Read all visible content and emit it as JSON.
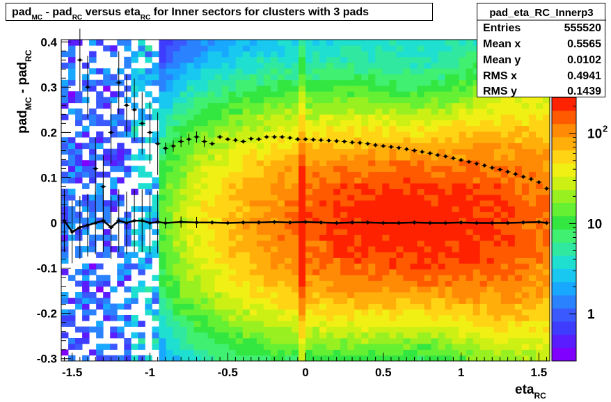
{
  "chart_data": {
    "type": "heatmap",
    "title": {
      "parts": [
        {
          "text": "pad",
          "style": "normal"
        },
        {
          "text": "MC",
          "style": "sub"
        },
        {
          "text": " - pad",
          "style": "normal"
        },
        {
          "text": "RC",
          "style": "sub"
        },
        {
          "text": " versus eta",
          "style": "normal"
        },
        {
          "text": "RC",
          "style": "sub"
        },
        {
          "text": " for Inner sectors for clusters with 3 pads",
          "style": "normal"
        }
      ]
    },
    "xlabel": {
      "main": "eta",
      "sub": "RC"
    },
    "ylabel": {
      "parts": [
        "pad",
        "MC",
        " - pad",
        "RC"
      ]
    },
    "xlim": [
      -1.57,
      1.57
    ],
    "ylim": [
      -0.305,
      0.405
    ],
    "xticks": [
      -1.5,
      -1,
      -0.5,
      0,
      0.5,
      1,
      1.5
    ],
    "xtick_labels": [
      "-1.5",
      "-1",
      "-0.5",
      "0",
      "0.5",
      "1",
      "1.5"
    ],
    "yticks": [
      -0.3,
      -0.2,
      -0.1,
      0,
      0.1,
      0.2,
      0.3,
      0.4
    ],
    "ytick_labels": [
      "-0.3",
      "-0.2",
      "-0.1",
      "0",
      "0.1",
      "0.2",
      "0.3",
      "0.4"
    ],
    "z_scale": "log",
    "zlim": [
      0.3,
      250
    ],
    "colorbar_ticks": [
      1,
      10,
      100
    ],
    "colorbar_labels": [
      "1",
      "10",
      "10"
    ],
    "colorbar_exponent": "2",
    "palette": [
      "#7f00ff",
      "#5a1dff",
      "#3e3dff",
      "#3a5aff",
      "#2a82ff",
      "#18a8ff",
      "#18c8f0",
      "#1fe0d0",
      "#30e8a0",
      "#40f070",
      "#33e640",
      "#66f033",
      "#99f020",
      "#ccf014",
      "#f0f014",
      "#ffd414",
      "#ffae0a",
      "#ff8a05",
      "#ff5a00",
      "#ff2200"
    ],
    "profile_mean": {
      "name": "mean profile",
      "x": [
        -1.55,
        -1.5,
        -1.45,
        -1.4,
        -1.35,
        -1.3,
        -1.25,
        -1.2,
        -1.15,
        -1.1,
        -1.05,
        -1.0,
        -0.95,
        -0.9,
        -0.8,
        -0.7,
        -0.6,
        -0.5,
        -0.4,
        -0.3,
        -0.2,
        -0.1,
        0.0,
        0.1,
        0.2,
        0.3,
        0.4,
        0.5,
        0.6,
        0.7,
        0.8,
        0.9,
        1.0,
        1.1,
        1.2,
        1.3,
        1.4,
        1.5,
        1.55
      ],
      "y": [
        0.005,
        -0.02,
        -0.01,
        -0.005,
        0.0,
        0.005,
        -0.01,
        0.005,
        0.0,
        0.005,
        0.005,
        0.0,
        0.002,
        0.0,
        0.002,
        0.001,
        0.001,
        0.0,
        0.001,
        0.001,
        0.002,
        0.001,
        0.002,
        0.001,
        0.0,
        0.001,
        0.001,
        0.0,
        0.0,
        0.001,
        0.0,
        0.0,
        0.001,
        0.0,
        0.0,
        0.0,
        0.001,
        0.002,
        0.0
      ]
    },
    "profile_rms": {
      "name": "rms profile",
      "x": [
        -1.45,
        -1.4,
        -1.35,
        -1.3,
        -1.25,
        -1.2,
        -1.15,
        -1.1,
        -1.05,
        -1.0,
        -0.95,
        -0.9,
        -0.85,
        -0.8,
        -0.75,
        -0.7,
        -0.65,
        -0.6,
        -0.55,
        -0.5,
        -0.45,
        -0.4,
        -0.35,
        -0.3,
        -0.25,
        -0.2,
        -0.15,
        -0.1,
        -0.05,
        0.0,
        0.05,
        0.1,
        0.15,
        0.2,
        0.25,
        0.3,
        0.35,
        0.4,
        0.45,
        0.5,
        0.55,
        0.6,
        0.65,
        0.7,
        0.75,
        0.8,
        0.85,
        0.9,
        0.95,
        1.0,
        1.05,
        1.1,
        1.15,
        1.2,
        1.25,
        1.3,
        1.35,
        1.4,
        1.45,
        1.5,
        1.55
      ],
      "y": [
        0.36,
        0.3,
        0.12,
        0.08,
        0.2,
        0.31,
        0.26,
        0.25,
        0.22,
        0.2,
        0.175,
        0.165,
        0.17,
        0.18,
        0.185,
        0.19,
        0.18,
        0.175,
        0.19,
        0.185,
        0.183,
        0.18,
        0.186,
        0.185,
        0.19,
        0.19,
        0.19,
        0.188,
        0.185,
        0.185,
        0.184,
        0.183,
        0.182,
        0.181,
        0.18,
        0.178,
        0.177,
        0.175,
        0.172,
        0.17,
        0.168,
        0.166,
        0.163,
        0.16,
        0.157,
        0.154,
        0.15,
        0.147,
        0.143,
        0.139,
        0.135,
        0.131,
        0.127,
        0.122,
        0.118,
        0.113,
        0.108,
        0.102,
        0.097,
        0.09,
        0.076
      ]
    }
  },
  "stats": {
    "name": "pad_eta_RC_Innerp3",
    "rows": [
      {
        "label": "Entries",
        "value": "555520"
      },
      {
        "label": "Mean x",
        "value": "0.5565"
      },
      {
        "label": "Mean y",
        "value": "0.0102"
      },
      {
        "label": "RMS x",
        "value": "0.4941"
      },
      {
        "label": "RMS y",
        "value": "0.1439"
      }
    ]
  }
}
